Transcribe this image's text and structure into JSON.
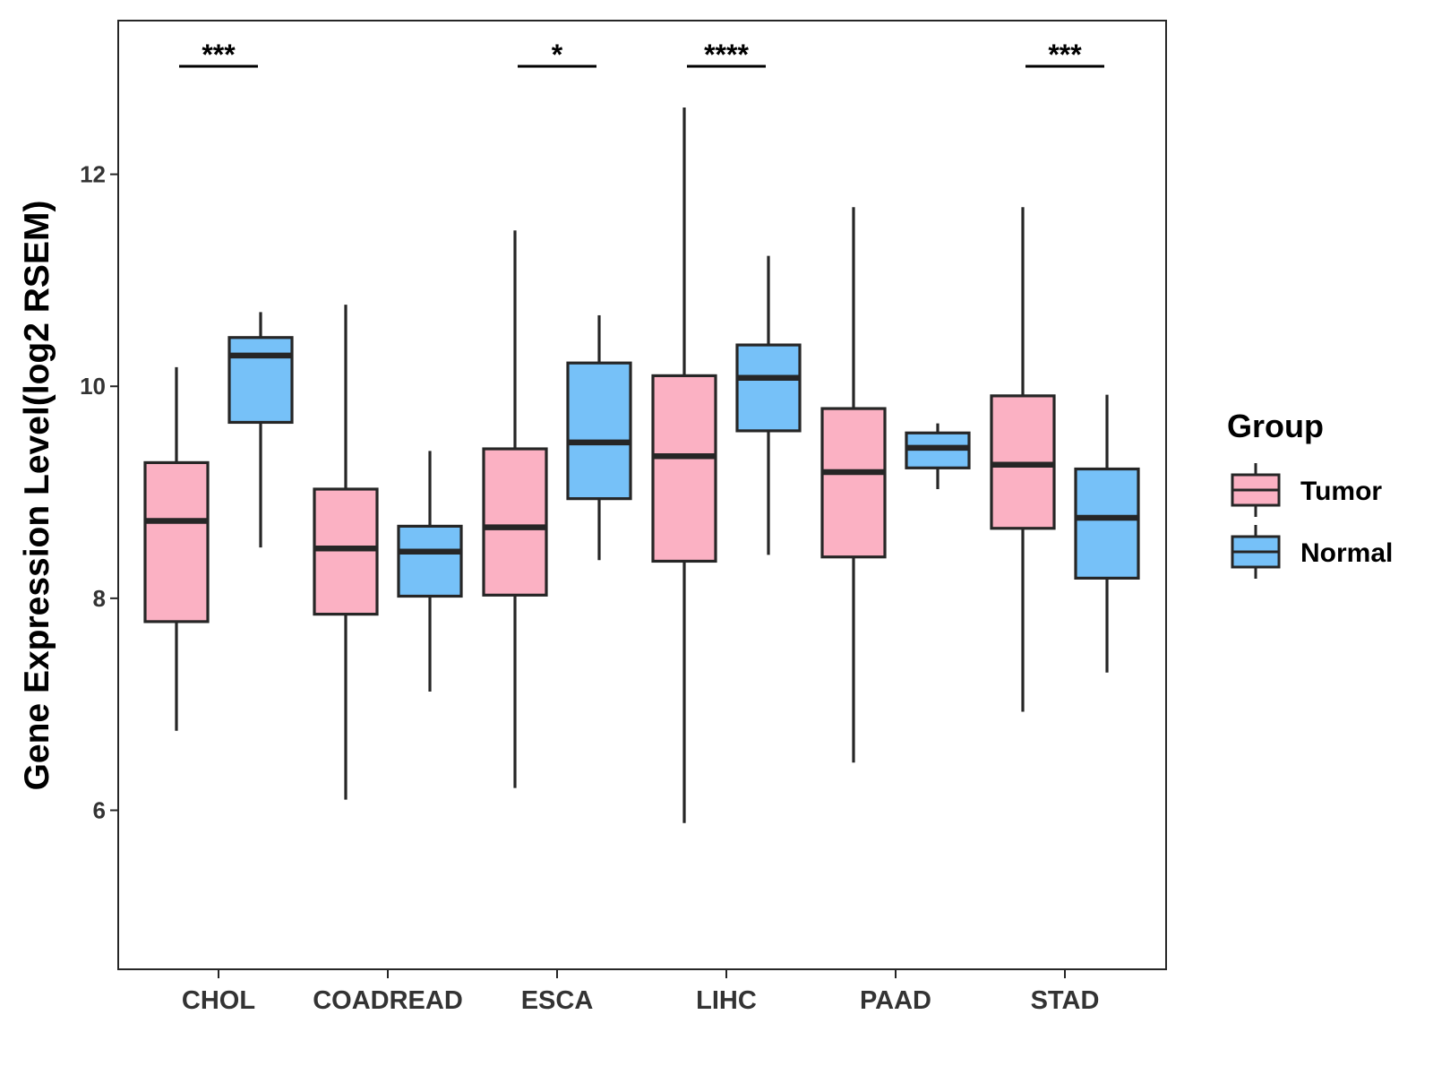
{
  "chart_data": {
    "type": "box",
    "ylabel": "Gene Expression Level(log2 RSEM)",
    "xlabel": "",
    "ylim": [
      4.5,
      13.45
    ],
    "yticks": [
      6,
      8,
      10,
      12
    ],
    "categories": [
      "CHOL",
      "COADREAD",
      "ESCA",
      "LIHC",
      "PAAD",
      "STAD"
    ],
    "legend": {
      "title": "Group",
      "position": "right",
      "entries": [
        {
          "name": "Tumor",
          "color": "#FBB1C3"
        },
        {
          "name": "Normal",
          "color": "#76C1F8"
        }
      ]
    },
    "colors": {
      "Tumor": "#FBB1C3",
      "Normal": "#76C1F8",
      "stroke": "#262626"
    },
    "series": [
      {
        "name": "Tumor",
        "boxes": [
          {
            "category": "CHOL",
            "min": 6.75,
            "q1": 7.78,
            "median": 8.73,
            "q3": 9.28,
            "max": 10.18
          },
          {
            "category": "COADREAD",
            "min": 6.1,
            "q1": 7.85,
            "median": 8.47,
            "q3": 9.03,
            "max": 10.77
          },
          {
            "category": "ESCA",
            "min": 6.21,
            "q1": 8.03,
            "median": 8.67,
            "q3": 9.41,
            "max": 11.47
          },
          {
            "category": "LIHC",
            "min": 5.88,
            "q1": 8.35,
            "median": 9.34,
            "q3": 10.1,
            "max": 12.63
          },
          {
            "category": "PAAD",
            "min": 6.45,
            "q1": 8.39,
            "median": 9.19,
            "q3": 9.79,
            "max": 11.69
          },
          {
            "category": "STAD",
            "min": 6.93,
            "q1": 8.66,
            "median": 9.26,
            "q3": 9.91,
            "max": 11.69
          }
        ]
      },
      {
        "name": "Normal",
        "boxes": [
          {
            "category": "CHOL",
            "min": 8.48,
            "q1": 9.66,
            "median": 10.29,
            "q3": 10.46,
            "max": 10.7
          },
          {
            "category": "COADREAD",
            "min": 7.12,
            "q1": 8.02,
            "median": 8.44,
            "q3": 8.68,
            "max": 9.39
          },
          {
            "category": "ESCA",
            "min": 8.36,
            "q1": 8.94,
            "median": 9.47,
            "q3": 10.22,
            "max": 10.67
          },
          {
            "category": "LIHC",
            "min": 8.41,
            "q1": 9.58,
            "median": 10.08,
            "q3": 10.39,
            "max": 11.23
          },
          {
            "category": "PAAD",
            "min": 9.03,
            "q1": 9.23,
            "median": 9.42,
            "q3": 9.56,
            "max": 9.65
          },
          {
            "category": "STAD",
            "min": 7.3,
            "q1": 8.19,
            "median": 8.76,
            "q3": 9.22,
            "max": 9.92
          }
        ]
      }
    ],
    "significance": [
      {
        "category": "CHOL",
        "label": "***"
      },
      {
        "category": "ESCA",
        "label": "*"
      },
      {
        "category": "LIHC",
        "label": "****"
      },
      {
        "category": "STAD",
        "label": "***"
      }
    ]
  }
}
